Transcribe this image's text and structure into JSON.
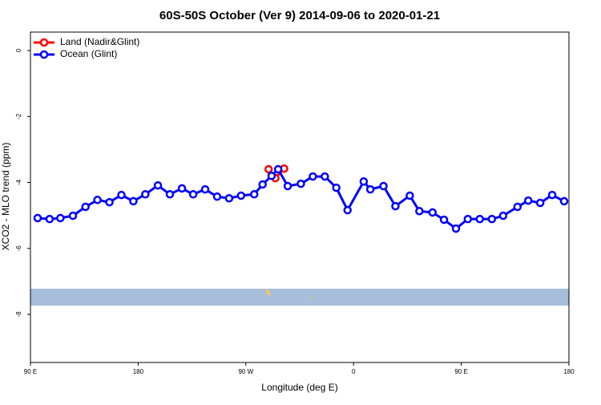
{
  "chart_data": {
    "type": "line",
    "title": "60S-50S October (Ver 9)   2014-09-06 to 2020-01-21",
    "x_label": "Longitude (deg E)",
    "y_label": "XCO2 - MLO trend (ppm)",
    "xlim": [
      84,
      534
    ],
    "ylim": [
      -9.46,
      0.56
    ],
    "xticks": [
      {
        "value": 84,
        "label": "90 E"
      },
      {
        "value": 174,
        "label": "180"
      },
      {
        "value": 264,
        "label": "90 W"
      },
      {
        "value": 354,
        "label": "0"
      },
      {
        "value": 444,
        "label": "90 E"
      },
      {
        "value": 534,
        "label": "180"
      }
    ],
    "yticks": [
      0,
      -2,
      -4,
      -6,
      -8
    ],
    "legend": "top-left",
    "series": [
      {
        "name": "Land (Nadir&Glint)",
        "color": "#ff0000",
        "x": [
          283,
          288.7,
          296
        ],
        "values": [
          -3.6,
          -3.87,
          -3.58
        ]
      },
      {
        "name": "Ocean (Glint)",
        "color": "#0000ff",
        "x": [
          90,
          100,
          109,
          119.5,
          130,
          140,
          150,
          160,
          170,
          180,
          190.5,
          200.5,
          210.6,
          220,
          230,
          240,
          250,
          260,
          271,
          278,
          285.5,
          291,
          299,
          310,
          320,
          330,
          339.6,
          349,
          362.5,
          368,
          379,
          389,
          401,
          409,
          420,
          429.6,
          439.6,
          449.5,
          459.5,
          469.6,
          479,
          491,
          500,
          510,
          520,
          530
        ],
        "values": [
          -5.08,
          -5.11,
          -5.08,
          -5.01,
          -4.74,
          -4.53,
          -4.6,
          -4.38,
          -4.57,
          -4.36,
          -4.09,
          -4.36,
          -4.18,
          -4.36,
          -4.21,
          -4.43,
          -4.48,
          -4.4,
          -4.36,
          -4.06,
          -3.8,
          -3.6,
          -4.11,
          -4.04,
          -3.82,
          -3.82,
          -4.16,
          -4.84,
          -3.97,
          -4.21,
          -4.11,
          -4.72,
          -4.4,
          -4.87,
          -4.91,
          -5.13,
          -5.4,
          -5.11,
          -5.11,
          -5.11,
          -5.01,
          -4.74,
          -4.55,
          -4.62,
          -4.38,
          -4.57
        ]
      }
    ]
  }
}
